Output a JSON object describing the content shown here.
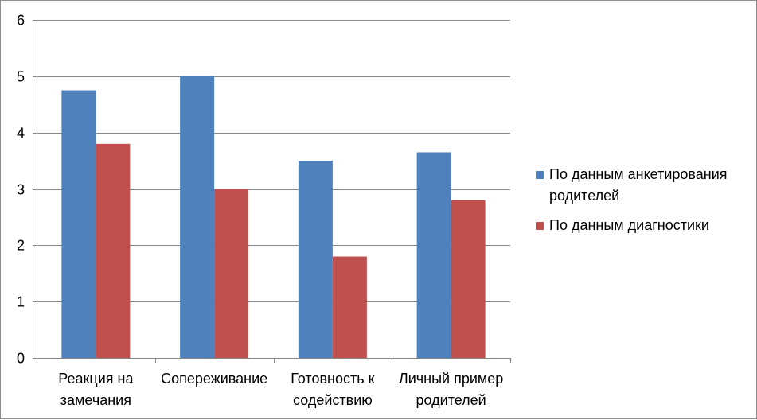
{
  "chart_data": {
    "type": "bar",
    "categories": [
      [
        "Реакция на",
        "замечания"
      ],
      [
        "Сопереживание"
      ],
      [
        "Готовность к",
        "содействию"
      ],
      [
        "Личный пример",
        "родителей"
      ]
    ],
    "series": [
      {
        "name": "По данным анкетирования родителей",
        "color": "#4f81bd",
        "values": [
          4.75,
          5.0,
          3.5,
          3.65
        ]
      },
      {
        "name": "По данным диагностики",
        "color": "#c0504d",
        "values": [
          3.8,
          3.0,
          1.8,
          2.8
        ]
      }
    ],
    "ylim": [
      0,
      6
    ],
    "yticks": [
      "0",
      "1",
      "2",
      "3",
      "4",
      "5",
      "6"
    ],
    "grid": true,
    "legend_position": "right"
  }
}
